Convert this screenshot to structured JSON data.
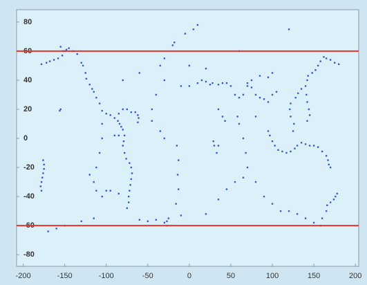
{
  "chart_data": {
    "type": "scatter",
    "color": "#3a5bc7",
    "xlim": [
      -208,
      204
    ],
    "ylim": [
      -88,
      88.5
    ],
    "xticks": [
      -200,
      -150,
      -100,
      -50,
      0,
      50,
      100,
      150,
      200
    ],
    "yticks": [
      -80,
      -60,
      -40,
      -20,
      0,
      20,
      40,
      60,
      80
    ],
    "reference_lines": [
      {
        "y": 60,
        "color": "#e8352a"
      },
      {
        "y": -60,
        "color": "#e8352a"
      }
    ],
    "x": [
      -178,
      -172,
      -168,
      -163,
      -158,
      -153,
      -150,
      -148,
      -145,
      -152,
      -155,
      -140,
      -135,
      -130,
      -128,
      -125,
      -124,
      -120,
      -117,
      -115,
      -112,
      -108,
      -105,
      -100,
      -95,
      -90,
      -86,
      -84,
      -82,
      -80,
      -70,
      -65,
      -62,
      -61,
      -62,
      -75,
      -80,
      -85,
      -78,
      -79,
      -80,
      -78,
      -76,
      -72,
      -70,
      -69,
      -70,
      -71,
      -72,
      -73,
      -73,
      -75,
      -60,
      -50,
      -40,
      -30,
      -27,
      -27,
      -25,
      -20,
      -30,
      -35,
      -30,
      -40,
      -45,
      -45,
      -35,
      -30,
      -15,
      -13,
      -14,
      -13,
      -16,
      -10,
      -18,
      -105,
      -105,
      -108,
      -112,
      -115,
      -112,
      -105,
      -100,
      -95,
      -85,
      -115,
      -130,
      -150,
      -160,
      -170,
      -90,
      -85,
      -155,
      -156,
      -176,
      -175,
      -175,
      -176,
      -177,
      -178,
      -179,
      -178,
      178,
      176,
      174,
      170,
      166,
      165,
      160,
      158,
      -10,
      0,
      10,
      15,
      20,
      25,
      28,
      35,
      40,
      45,
      50,
      55,
      60,
      65,
      70,
      75,
      80,
      85,
      90,
      95,
      100,
      105,
      95,
      85,
      75,
      70,
      40,
      35,
      43,
      35,
      30,
      33,
      29,
      58,
      60,
      65,
      68,
      70,
      65,
      55,
      45,
      35,
      20,
      80,
      90,
      100,
      110,
      120,
      130,
      140,
      150,
      95,
      97,
      100,
      103,
      107,
      112,
      117,
      122,
      127,
      130,
      125,
      126,
      122,
      121,
      122,
      128,
      131,
      135,
      140,
      142,
      143,
      148,
      152,
      155,
      158,
      162,
      165,
      170,
      175,
      180,
      142,
      145,
      144,
      142,
      141,
      135,
      140,
      145,
      150,
      155,
      160,
      165,
      167,
      168,
      170,
      -5,
      5,
      10,
      120,
      0,
      -80,
      100,
      -60,
      20,
      60,
      -120,
      80
    ],
    "y": [
      51,
      52,
      53,
      54,
      55,
      57,
      60,
      61,
      62,
      60,
      63,
      60,
      58,
      52,
      50,
      45,
      41,
      37,
      34,
      32,
      28,
      24,
      19,
      17,
      16,
      14,
      12,
      10,
      8,
      6,
      18,
      18,
      16,
      14,
      11,
      20,
      20,
      17,
      2,
      -2,
      -5,
      -10,
      -14,
      -17,
      -20,
      -24,
      -28,
      -32,
      -36,
      -40,
      -44,
      -48,
      -56,
      -57,
      -56,
      -58,
      -57,
      -60,
      -55,
      64,
      55,
      50,
      40,
      30,
      20,
      12,
      5,
      0,
      -5,
      -15,
      -25,
      -35,
      -45,
      -53,
      66,
      10,
      0,
      -10,
      -20,
      -30,
      -36,
      -40,
      -36,
      -36,
      -38,
      -55,
      -57,
      -60,
      -62,
      -64,
      2,
      2,
      20,
      19,
      -15,
      -18,
      -21,
      -24,
      -27,
      -30,
      -33,
      -36,
      -38,
      -40,
      -42,
      -44,
      -46,
      -50,
      -55,
      -60,
      36,
      36,
      38,
      40,
      39,
      37,
      38,
      37,
      38,
      38,
      36,
      30,
      28,
      30,
      36,
      35,
      30,
      28,
      27,
      25,
      30,
      32,
      42,
      43,
      40,
      38,
      15,
      20,
      12,
      -5,
      -5,
      -10,
      -2,
      15,
      10,
      0,
      -10,
      -20,
      -27,
      -30,
      -35,
      -42,
      -52,
      -30,
      -40,
      -45,
      -50,
      -50,
      -52,
      -55,
      -58,
      5,
      2,
      -2,
      -5,
      -8,
      -9,
      -10,
      -9,
      -7,
      -5,
      5,
      10,
      15,
      20,
      24,
      28,
      31,
      34,
      36,
      40,
      43,
      45,
      47,
      50,
      53,
      56,
      55,
      54,
      52,
      51,
      12,
      16,
      20,
      25,
      30,
      -3,
      -4,
      -5,
      -5,
      -6,
      -9,
      -12,
      -15,
      -18,
      -20,
      72,
      75,
      78,
      75,
      50,
      40,
      45,
      45,
      48,
      60,
      -25,
      15
    ]
  }
}
